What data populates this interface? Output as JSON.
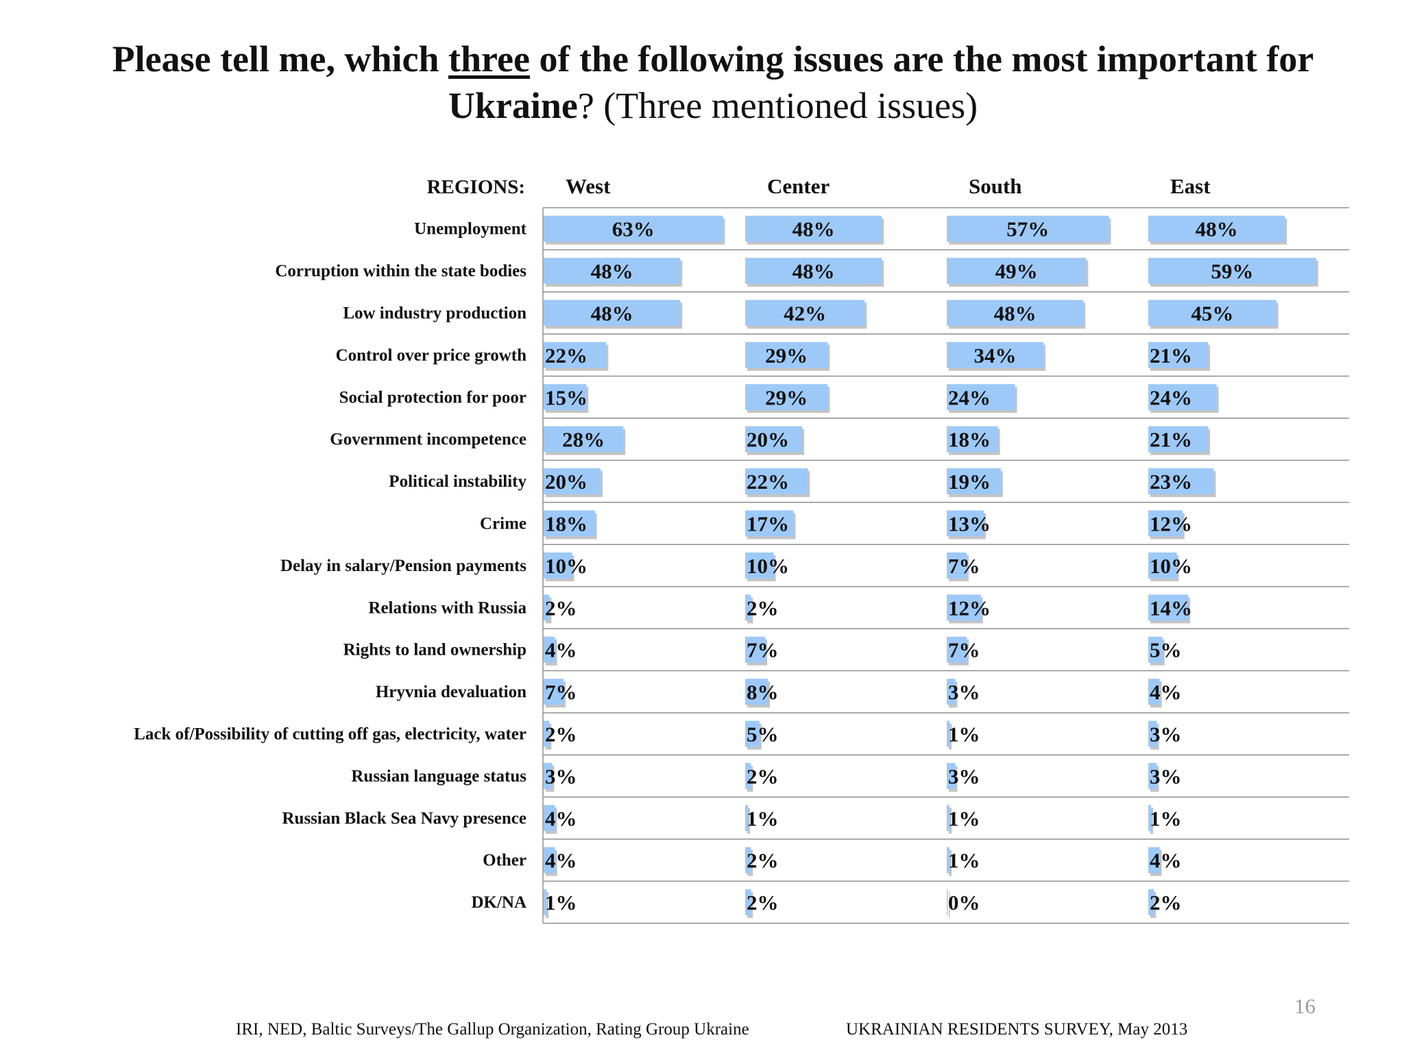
{
  "title": {
    "part1": "Please tell me, which ",
    "underlined": "three",
    "part2": " of the following issues are the most important for",
    "part3": "Ukraine",
    "part4": "? (Three mentioned issues)"
  },
  "colors": {
    "bar": "#9dc9f8",
    "bar_shadow": "#c4c4c4",
    "gridline": "#8f8f8f",
    "text": "#111111"
  },
  "chart_data": {
    "type": "bar",
    "orientation": "horizontal",
    "regions_label": "REGIONS:",
    "categories": [
      "Unemployment",
      "Corruption within the state bodies",
      "Low industry production",
      "Control over price growth",
      "Social protection for poor",
      "Government incompetence",
      "Political instability",
      "Crime",
      "Delay in salary/Pension payments",
      "Relations with Russia",
      "Rights to land ownership",
      "Hryvnia devaluation",
      "Lack of/Possibility of cutting off gas, electricity, water",
      "Russian language status",
      "Russian Black Sea Navy presence",
      "Other",
      "DK/NA"
    ],
    "series": [
      {
        "name": "West",
        "values": [
          63,
          48,
          48,
          22,
          15,
          28,
          20,
          18,
          10,
          2,
          4,
          7,
          2,
          3,
          4,
          4,
          1
        ],
        "labels": [
          "63%",
          "48%",
          "48%",
          "22%",
          "15%",
          "28%",
          "20%",
          "18%",
          "10%",
          "2%",
          "4%",
          "7%",
          "2%",
          "3%",
          "4%",
          "4%",
          "1%"
        ]
      },
      {
        "name": "Center",
        "values": [
          48,
          48,
          42,
          29,
          29,
          20,
          22,
          17,
          10,
          2,
          7,
          8,
          5,
          2,
          1,
          2,
          2
        ],
        "labels": [
          "48%",
          "48%",
          "42%",
          "29%",
          "29%",
          "20%",
          "22%",
          "17%",
          "10%",
          "2%",
          "7%",
          "8%",
          "5%",
          "2%",
          "1%",
          "2%",
          "2%"
        ]
      },
      {
        "name": "South",
        "values": [
          57,
          49,
          48,
          34,
          24,
          18,
          19,
          13,
          7,
          12,
          7,
          3,
          1,
          3,
          1,
          1,
          0
        ],
        "labels": [
          "57%",
          "49%",
          "48%",
          "34%",
          "24%",
          "18%",
          "19%",
          "13%",
          "7%",
          "12%",
          "7%",
          "3%",
          "1%",
          "3%",
          "1%",
          "1%",
          "0%"
        ]
      },
      {
        "name": "East",
        "values": [
          48,
          59,
          45,
          21,
          24,
          21,
          23,
          12,
          10,
          14,
          5,
          4,
          3,
          3,
          1,
          4,
          2
        ],
        "labels": [
          "48%",
          "59%",
          "45%",
          "21%",
          "24%",
          "21%",
          "23%",
          "12%",
          "10%",
          "14%",
          "5%",
          "4%",
          "3%",
          "3%",
          "1%",
          "4%",
          "2%"
        ]
      }
    ],
    "unit": "%",
    "grid": true,
    "legend": "none"
  },
  "footer": {
    "source": "IRI, NED,  Baltic Surveys/The Gallup Organization, Rating Group Ukraine",
    "survey": "UKRAINIAN RESIDENTS SURVEY, May  2013",
    "page_number": "16"
  }
}
